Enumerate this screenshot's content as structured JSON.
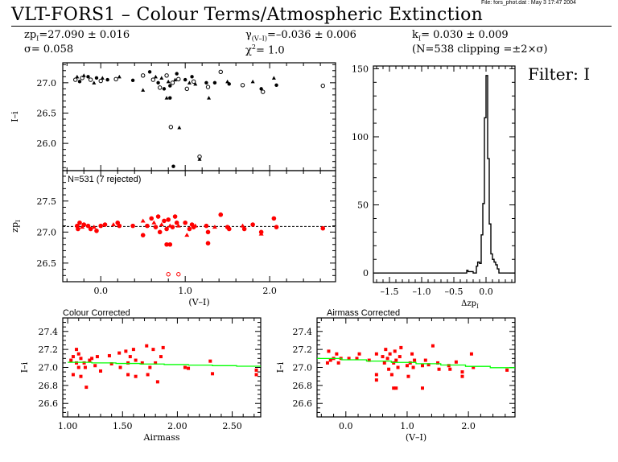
{
  "header": {
    "file_info": "File: fors_phot.dat : May  3 17:47 2004",
    "title": "VLT-FORS1  –  Colour Terms/Atmospheric Extinction",
    "stats": {
      "zp": "zp",
      "zp_sub": "I",
      "zp_value": "=27.090 ± 0.016",
      "sigma": "σ= 0.058",
      "gamma": "γ",
      "gamma_sub": "(V–I)",
      "gamma_value": "=–0.036 ± 0.006",
      "chi": "χ",
      "chi_sup": "2",
      "chi_value": "=  1.0",
      "k": "k",
      "k_sub": "I",
      "k_value": "= 0.030 ± 0.009",
      "n_clip": "(N=538 clipping =±2×σ)"
    },
    "filter_label": "Filter: I"
  },
  "colors": {
    "red": "#ff0000",
    "green": "#00ff00",
    "black": "#000000"
  },
  "chart_data": [
    {
      "type": "scatter",
      "name": "instrumental-vs-colour",
      "ylabel": "I–i",
      "xlim": [
        -0.45,
        2.78
      ],
      "ylim": [
        25.55,
        27.33
      ],
      "yticks": [
        27.0,
        26.5,
        26.0
      ],
      "ytick_labels": [
        "27.0",
        "26.5",
        "26.0"
      ],
      "points": [
        [
          -0.3,
          27.05
        ],
        [
          -0.28,
          27.1
        ],
        [
          -0.25,
          27.02
        ],
        [
          -0.22,
          27.08
        ],
        [
          -0.2,
          27.12
        ],
        [
          -0.15,
          27.1
        ],
        [
          -0.12,
          27.05
        ],
        [
          -0.08,
          27.0
        ],
        [
          -0.05,
          27.08
        ],
        [
          0.0,
          27.03
        ],
        [
          0.02,
          27.08
        ],
        [
          0.08,
          27.05
        ],
        [
          0.18,
          27.06
        ],
        [
          0.22,
          27.1
        ],
        [
          0.38,
          27.04
        ],
        [
          0.5,
          27.12
        ],
        [
          0.5,
          26.88
        ],
        [
          0.58,
          27.18
        ],
        [
          0.62,
          27.05
        ],
        [
          0.65,
          27.1
        ],
        [
          0.68,
          27.0
        ],
        [
          0.7,
          26.92
        ],
        [
          0.72,
          27.08
        ],
        [
          0.75,
          26.9
        ],
        [
          0.78,
          27.12
        ],
        [
          0.8,
          27.02
        ],
        [
          0.82,
          26.95
        ],
        [
          0.85,
          27.0
        ],
        [
          0.88,
          27.05
        ],
        [
          0.9,
          27.15
        ],
        [
          0.92,
          27.06
        ],
        [
          0.78,
          26.75
        ],
        [
          0.82,
          26.75
        ],
        [
          0.83,
          26.27
        ],
        [
          0.93,
          26.26
        ],
        [
          1.0,
          27.05
        ],
        [
          1.02,
          26.9
        ],
        [
          1.05,
          27.0
        ],
        [
          1.08,
          27.1
        ],
        [
          1.1,
          27.02
        ],
        [
          1.12,
          26.98
        ],
        [
          1.25,
          27.0
        ],
        [
          1.27,
          26.93
        ],
        [
          1.28,
          26.75
        ],
        [
          1.35,
          27.0
        ],
        [
          1.42,
          27.18
        ],
        [
          1.5,
          27.02
        ],
        [
          1.52,
          26.98
        ],
        [
          1.68,
          26.96
        ],
        [
          1.8,
          27.02
        ],
        [
          1.9,
          26.9
        ],
        [
          1.92,
          26.85
        ],
        [
          2.05,
          27.08
        ],
        [
          2.08,
          26.96
        ],
        [
          1.17,
          25.78
        ],
        [
          1.17,
          25.74
        ],
        [
          0.86,
          25.62
        ],
        [
          2.63,
          26.95
        ]
      ]
    },
    {
      "type": "scatter",
      "name": "zeropoint-vs-colour",
      "annotation": "N=531 (7 rejected)",
      "ylabel": "zp",
      "ylabel_sub": "I",
      "xlabel": "(V–I)",
      "xlim": [
        -0.45,
        2.78
      ],
      "ylim": [
        26.2,
        27.99
      ],
      "yticks": [
        27.5,
        27.0,
        26.5
      ],
      "ytick_labels": [
        "27.5",
        "27.0",
        "26.5"
      ],
      "xticks": [
        0.0,
        1.0,
        2.0
      ],
      "xtick_labels": [
        "0.0",
        "1.0",
        "2.0"
      ],
      "fit_level": 27.09,
      "points": [
        [
          -0.28,
          27.1
        ],
        [
          -0.27,
          27.05
        ],
        [
          -0.25,
          27.15
        ],
        [
          -0.22,
          27.08
        ],
        [
          -0.2,
          27.12
        ],
        [
          -0.15,
          27.1
        ],
        [
          -0.12,
          27.05
        ],
        [
          -0.08,
          27.08
        ],
        [
          -0.05,
          27.02
        ],
        [
          0.0,
          27.1
        ],
        [
          0.05,
          27.12
        ],
        [
          0.15,
          27.12
        ],
        [
          0.2,
          27.15
        ],
        [
          0.22,
          27.1
        ],
        [
          0.38,
          27.1
        ],
        [
          0.5,
          27.18
        ],
        [
          0.5,
          26.95
        ],
        [
          0.55,
          27.1
        ],
        [
          0.6,
          27.22
        ],
        [
          0.63,
          27.15
        ],
        [
          0.65,
          27.08
        ],
        [
          0.68,
          27.25
        ],
        [
          0.7,
          27.0
        ],
        [
          0.72,
          27.12
        ],
        [
          0.75,
          27.18
        ],
        [
          0.78,
          27.05
        ],
        [
          0.8,
          27.2
        ],
        [
          0.82,
          27.1
        ],
        [
          0.85,
          27.08
        ],
        [
          0.88,
          27.25
        ],
        [
          0.9,
          27.15
        ],
        [
          0.92,
          27.1
        ],
        [
          0.78,
          26.8
        ],
        [
          0.82,
          26.8
        ],
        [
          1.0,
          27.15
        ],
        [
          1.02,
          26.95
        ],
        [
          1.05,
          27.05
        ],
        [
          1.08,
          27.12
        ],
        [
          1.1,
          27.08
        ],
        [
          1.12,
          27.1
        ],
        [
          1.25,
          27.1
        ],
        [
          1.27,
          27.0
        ],
        [
          1.27,
          26.82
        ],
        [
          1.35,
          27.08
        ],
        [
          1.42,
          27.28
        ],
        [
          1.5,
          27.08
        ],
        [
          1.52,
          27.05
        ],
        [
          1.68,
          27.1
        ],
        [
          1.7,
          27.05
        ],
        [
          1.8,
          27.12
        ],
        [
          1.9,
          27.0
        ],
        [
          1.9,
          26.97
        ],
        [
          2.05,
          27.22
        ],
        [
          2.08,
          27.08
        ],
        [
          2.63,
          27.06
        ]
      ],
      "rejected_points": [
        [
          0.8,
          26.32
        ],
        [
          0.92,
          26.32
        ]
      ]
    },
    {
      "type": "bar",
      "name": "zeropoint-residual-histogram",
      "xlabel": "Δzp",
      "xlabel_sub": "I",
      "xlim": [
        -1.75,
        0.45
      ],
      "ylim": [
        -7,
        152
      ],
      "xticks": [
        -1.5,
        -1.0,
        -0.5,
        0.0
      ],
      "xtick_labels": [
        "–1.5",
        "–1.0",
        "–0.5",
        "0.0"
      ],
      "yticks": [
        0,
        50,
        100,
        150
      ],
      "ytick_labels": [
        "0",
        "50",
        "100",
        "150"
      ],
      "bin_edges": [
        -1.75,
        -0.3,
        -0.28,
        -0.2,
        -0.15,
        -0.13,
        -0.1,
        -0.075,
        -0.05,
        -0.025,
        0.0,
        0.025,
        0.05,
        0.075,
        0.1,
        0.125,
        0.15,
        0.175,
        0.2,
        0.225,
        0.45
      ],
      "counts": [
        0,
        2,
        1,
        0,
        5,
        8,
        7,
        28,
        51,
        114,
        145,
        84,
        36,
        14,
        10,
        8,
        6,
        3,
        0,
        0
      ]
    },
    {
      "type": "scatter",
      "name": "colour-corrected-vs-airmass",
      "title": "Colour Corrected",
      "ylabel": "I–i",
      "xlabel": "Airmass",
      "xlim": [
        0.955,
        2.76
      ],
      "ylim": [
        26.45,
        27.55
      ],
      "xticks": [
        1.0,
        1.5,
        2.0,
        2.5
      ],
      "xtick_labels": [
        "1.00",
        "1.50",
        "2.00",
        "2.50"
      ],
      "yticks": [
        27.4,
        27.2,
        27.0,
        26.8,
        26.6
      ],
      "ytick_labels": [
        "27.4",
        "27.2",
        "27.0",
        "26.8",
        "26.6"
      ],
      "fit_line": [
        [
          1.0,
          27.06
        ],
        [
          2.76,
          27.01
        ]
      ],
      "points": [
        [
          1.03,
          27.08
        ],
        [
          1.05,
          27.12
        ],
        [
          1.05,
          26.92
        ],
        [
          1.08,
          27.2
        ],
        [
          1.08,
          27.05
        ],
        [
          1.1,
          27.0
        ],
        [
          1.1,
          27.15
        ],
        [
          1.12,
          26.9
        ],
        [
          1.12,
          27.1
        ],
        [
          1.15,
          27.05
        ],
        [
          1.16,
          27.0
        ],
        [
          1.17,
          26.78
        ],
        [
          1.2,
          27.08
        ],
        [
          1.22,
          27.1
        ],
        [
          1.25,
          27.02
        ],
        [
          1.27,
          27.12
        ],
        [
          1.3,
          26.96
        ],
        [
          1.38,
          27.13
        ],
        [
          1.4,
          27.04
        ],
        [
          1.47,
          27.16
        ],
        [
          1.48,
          27.0
        ],
        [
          1.53,
          27.18
        ],
        [
          1.55,
          27.05
        ],
        [
          1.55,
          26.92
        ],
        [
          1.57,
          27.12
        ],
        [
          1.6,
          27.2
        ],
        [
          1.62,
          27.08
        ],
        [
          1.62,
          26.9
        ],
        [
          1.68,
          27.05
        ],
        [
          1.72,
          27.24
        ],
        [
          1.73,
          26.92
        ],
        [
          1.75,
          27.0
        ],
        [
          1.78,
          27.2
        ],
        [
          1.8,
          27.05
        ],
        [
          1.82,
          26.84
        ],
        [
          1.85,
          27.12
        ],
        [
          1.87,
          27.22
        ],
        [
          2.07,
          27.0
        ],
        [
          2.1,
          26.99
        ],
        [
          2.3,
          27.07
        ],
        [
          2.32,
          26.93
        ],
        [
          2.72,
          26.97
        ],
        [
          2.72,
          26.92
        ]
      ]
    },
    {
      "type": "scatter",
      "name": "airmass-corrected-vs-colour",
      "title": "Airmass Corrected",
      "ylabel": "I–i",
      "xlabel": "(V–I)",
      "xlim": [
        -0.47,
        2.76
      ],
      "ylim": [
        26.45,
        27.55
      ],
      "xticks": [
        0.0,
        1.0,
        2.0
      ],
      "xtick_labels": [
        "0.0",
        "1.0",
        "2.0"
      ],
      "yticks": [
        27.4,
        27.2,
        27.0,
        26.8,
        26.6
      ],
      "ytick_labels": [
        "27.4",
        "27.2",
        "27.0",
        "26.8",
        "26.6"
      ],
      "fit_line": [
        [
          -0.47,
          27.107
        ],
        [
          2.76,
          26.99
        ]
      ],
      "points": [
        [
          -0.3,
          27.05
        ],
        [
          -0.28,
          27.18
        ],
        [
          -0.25,
          27.08
        ],
        [
          -0.2,
          27.1
        ],
        [
          -0.15,
          27.15
        ],
        [
          -0.12,
          27.05
        ],
        [
          -0.08,
          27.1
        ],
        [
          0.05,
          27.1
        ],
        [
          0.18,
          27.1
        ],
        [
          0.22,
          27.15
        ],
        [
          0.38,
          27.08
        ],
        [
          0.5,
          27.15
        ],
        [
          0.5,
          26.92
        ],
        [
          0.5,
          26.86
        ],
        [
          0.6,
          27.12
        ],
        [
          0.63,
          27.05
        ],
        [
          0.65,
          27.2
        ],
        [
          0.68,
          27.1
        ],
        [
          0.7,
          26.98
        ],
        [
          0.72,
          27.15
        ],
        [
          0.75,
          26.92
        ],
        [
          0.78,
          27.05
        ],
        [
          0.8,
          27.18
        ],
        [
          0.82,
          27.08
        ],
        [
          0.85,
          27.0
        ],
        [
          0.88,
          27.12
        ],
        [
          0.9,
          27.22
        ],
        [
          0.78,
          26.77
        ],
        [
          0.82,
          26.77
        ],
        [
          1.0,
          27.02
        ],
        [
          1.02,
          26.9
        ],
        [
          1.05,
          27.05
        ],
        [
          1.08,
          27.15
        ],
        [
          1.1,
          27.0
        ],
        [
          1.12,
          27.08
        ],
        [
          1.25,
          27.02
        ],
        [
          1.25,
          26.77
        ],
        [
          1.3,
          27.08
        ],
        [
          1.35,
          27.03
        ],
        [
          1.42,
          27.24
        ],
        [
          1.5,
          27.05
        ],
        [
          1.52,
          26.98
        ],
        [
          1.68,
          27.02
        ],
        [
          1.7,
          26.98
        ],
        [
          1.8,
          27.06
        ],
        [
          1.9,
          26.95
        ],
        [
          1.9,
          26.9
        ],
        [
          2.05,
          27.15
        ],
        [
          2.08,
          27.0
        ],
        [
          2.63,
          26.97
        ]
      ]
    }
  ]
}
